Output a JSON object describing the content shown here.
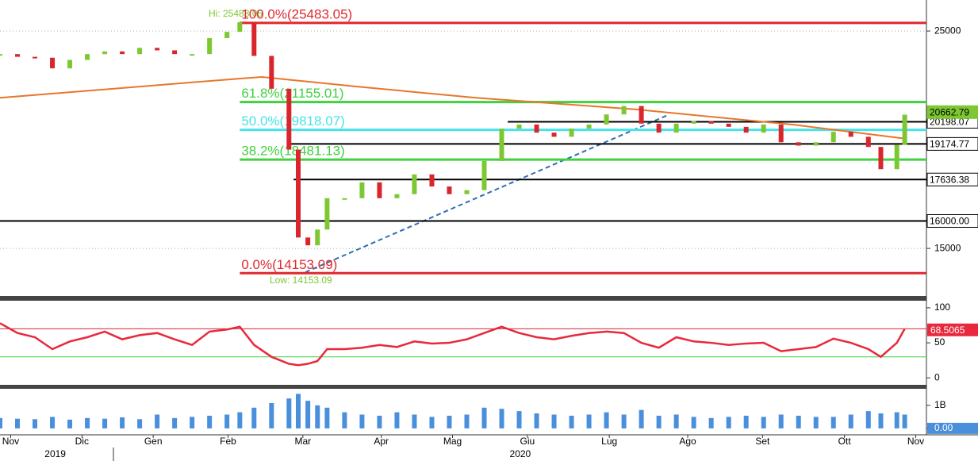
{
  "chart_data": {
    "type": "candlestick",
    "x": [
      0,
      4.9,
      9.8,
      14.7,
      19.6,
      24.5,
      29.4,
      34.3,
      39.2,
      44.1,
      49,
      53.9,
      58.8,
      63.7,
      67.3,
      71.3,
      76.2,
      81.1,
      83.7,
      86.4,
      89.1,
      91.8,
      96.7,
      101.6,
      106.5,
      111.4,
      116.3,
      121.2,
      126.1,
      131,
      135.9,
      140.8,
      145.7,
      150.6,
      155.5,
      160.4,
      165.3,
      170.2,
      175.1,
      180,
      184.9,
      189.8,
      194.7,
      199.6,
      204.5,
      209.4,
      214.3,
      219.2,
      224.1,
      229,
      233.9,
      238.8,
      243.7,
      247.2,
      251.7,
      253.9
    ],
    "closes": [
      23680,
      23530,
      23480,
      22900,
      23360,
      23680,
      23830,
      23680,
      24030,
      23890,
      23680,
      23680,
      24590,
      24950,
      25520,
      23580,
      21830,
      18920,
      15390,
      15110,
      15680,
      16880,
      16880,
      17520,
      16880,
      17040,
      17850,
      17350,
      17040,
      17200,
      18420,
      19880,
      20070,
      19690,
      19500,
      19880,
      20070,
      20550,
      20960,
      20110,
      19690,
      20110,
      20230,
      20110,
      19960,
      19690,
      20070,
      19250,
      19100,
      19250,
      19730,
      19500,
      19040,
      18070,
      19140,
      20540
    ],
    "color_up": "#7dc832",
    "color_down": "#d9262d",
    "xlim": [
      0,
      260
    ],
    "xticks": [
      {
        "value": 3,
        "label": "Nov"
      },
      {
        "value": 23,
        "label": "Dic"
      },
      {
        "value": 43,
        "label": "Gen"
      },
      {
        "value": 64,
        "label": "Feb"
      },
      {
        "value": 85,
        "label": "Mar"
      },
      {
        "value": 107,
        "label": "Apr"
      },
      {
        "value": 127,
        "label": "Mag"
      },
      {
        "value": 148,
        "label": "Giu"
      },
      {
        "value": 171,
        "label": "Lug"
      },
      {
        "value": 193,
        "label": "Ago"
      },
      {
        "value": 214,
        "label": "Set"
      },
      {
        "value": 237,
        "label": "Ott"
      },
      {
        "value": 257,
        "label": "Nov"
      }
    ],
    "year_labels": [
      {
        "value": 15.5,
        "label": "2019"
      },
      {
        "value": 146,
        "label": "2020"
      }
    ],
    "ylim": [
      13440,
      26890
    ],
    "log_scale": true,
    "yticks": [
      15000,
      25000
    ],
    "last_price": 20662.79,
    "last_price_color": "#7dc832",
    "moving_average": {
      "color": "#e8762b",
      "x": [
        0,
        66.8,
        73.5,
        100.2,
        133.6,
        178.2,
        222.7,
        253.9
      ],
      "values": [
        21370,
        22350,
        22440,
        21940,
        21370,
        20800,
        20060,
        19420
      ]
    },
    "fib_levels": [
      {
        "label": "100.0%(25483.05)",
        "value": 25483.05,
        "color": "#e0282e"
      },
      {
        "label": "61.8%(21155.01)",
        "value": 21155.01,
        "color": "#3fd13f"
      },
      {
        "label": "50.0%(19818.07)",
        "value": 19818.07,
        "color": "#45e3ea"
      },
      {
        "label": "38.2%(18481.13)",
        "value": 18481.13,
        "color": "#3fd13f"
      },
      {
        "label": "0.0%(14153.09)",
        "value": 14153.09,
        "color": "#e0282e"
      }
    ],
    "fib_x": 67.3,
    "levels": [
      {
        "value": 20198.07,
        "x_start": 142.5
      },
      {
        "value": 19174.77,
        "x_start": 81.7
      },
      {
        "value": 17636.38,
        "x_start": 82.4
      },
      {
        "value": 16000,
        "label": "16000.00",
        "x_start": 0
      }
    ],
    "hi_label": "Hi: 25483.05",
    "low_label": "Low: 14153.09",
    "rsi": {
      "color": "#e8283c",
      "values": [
        78,
        64,
        58,
        41,
        52,
        58,
        66,
        55,
        61,
        64,
        55,
        47,
        66,
        69,
        73,
        47,
        30,
        20,
        18,
        20,
        24,
        41,
        41,
        43,
        47,
        44,
        52,
        49,
        50,
        55,
        64,
        73,
        64,
        58,
        55,
        60,
        64,
        66,
        64,
        50,
        43,
        58,
        52,
        50,
        47,
        49,
        50,
        38,
        41,
        44,
        56,
        50,
        41,
        30,
        50,
        70
      ],
      "ylim": [
        -10,
        109
      ],
      "yticks": [
        0,
        50,
        100
      ],
      "upper": 70,
      "lower": 30,
      "last": 68.5065
    },
    "volume": {
      "color": "#4a8fdc",
      "values": [
        450000000,
        420000000,
        400000000,
        500000000,
        380000000,
        450000000,
        420000000,
        480000000,
        400000000,
        600000000,
        450000000,
        500000000,
        550000000,
        600000000,
        700000000,
        900000000,
        1100000000,
        1300000000,
        1500000000,
        1200000000,
        1000000000,
        900000000,
        700000000,
        600000000,
        550000000,
        700000000,
        600000000,
        500000000,
        550000000,
        600000000,
        900000000,
        850000000,
        750000000,
        650000000,
        600000000,
        550000000,
        600000000,
        700000000,
        600000000,
        800000000,
        550000000,
        600000000,
        500000000,
        450000000,
        500000000,
        550000000,
        500000000,
        600000000,
        550000000,
        500000000,
        500000000,
        600000000,
        750000000,
        650000000,
        700000000,
        600000000
      ],
      "ylim": [
        -280000000,
        1720000000
      ],
      "yticks": [
        {
          "value": 0,
          "label": "0.00"
        },
        {
          "value": 1000000000,
          "label": "1B"
        }
      ]
    }
  }
}
